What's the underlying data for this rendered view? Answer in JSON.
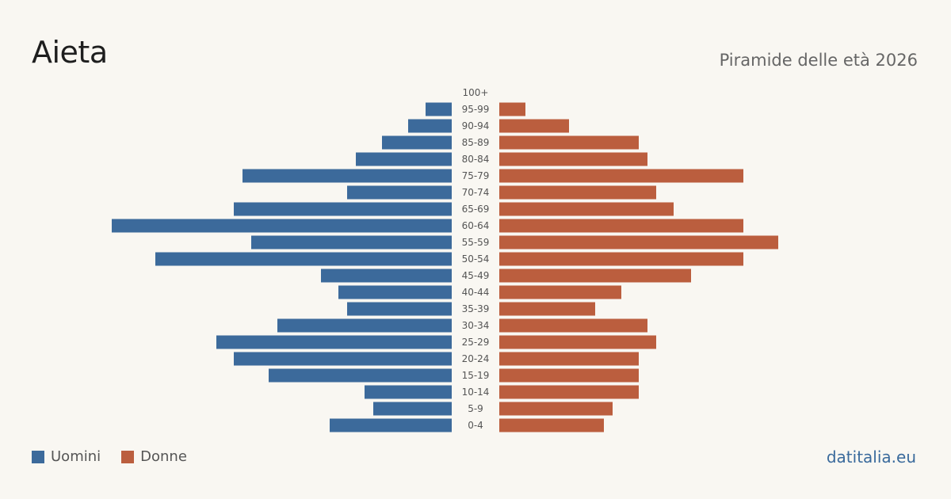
{
  "title": "Aieta",
  "subtitle": "Piramide delle età 2026",
  "brand": "datitalia.eu",
  "colors": {
    "male": "#3c6a9b",
    "female": "#bb5e3e",
    "background": "#f9f7f2"
  },
  "legend": {
    "male_label": "Uomini",
    "female_label": "Donne"
  },
  "chart_data": {
    "type": "bar",
    "orientation": "horizontal-pyramid",
    "title": "Aieta",
    "subtitle": "Piramide delle età 2026",
    "categories": [
      "100+",
      "95-99",
      "90-94",
      "85-89",
      "80-84",
      "75-79",
      "70-74",
      "65-69",
      "60-64",
      "55-59",
      "50-54",
      "45-49",
      "40-44",
      "35-39",
      "30-34",
      "25-29",
      "20-24",
      "15-19",
      "10-14",
      "5-9",
      "0-4"
    ],
    "series": [
      {
        "name": "Uomini",
        "values": [
          0,
          3,
          5,
          8,
          11,
          24,
          12,
          25,
          39,
          23,
          34,
          15,
          13,
          12,
          20,
          27,
          25,
          21,
          10,
          9,
          14
        ]
      },
      {
        "name": "Donne",
        "values": [
          0,
          3,
          8,
          16,
          17,
          28,
          18,
          20,
          28,
          32,
          28,
          22,
          14,
          11,
          17,
          18,
          16,
          16,
          16,
          13,
          12
        ]
      }
    ],
    "xlim": [
      0,
      40
    ],
    "grid": false,
    "legend_position": "bottom-left"
  }
}
